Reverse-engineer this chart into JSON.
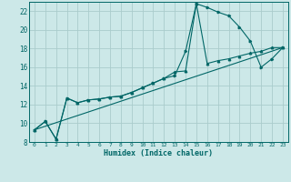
{
  "xlabel": "Humidex (Indice chaleur)",
  "bg_color": "#cce8e8",
  "grid_color": "#aacccc",
  "line_color": "#006666",
  "xlim": [
    -0.5,
    23.5
  ],
  "ylim": [
    8,
    23
  ],
  "xticks": [
    0,
    1,
    2,
    3,
    4,
    5,
    6,
    7,
    8,
    9,
    10,
    11,
    12,
    13,
    14,
    15,
    16,
    17,
    18,
    19,
    20,
    21,
    22,
    23
  ],
  "yticks": [
    8,
    10,
    12,
    14,
    16,
    18,
    20,
    22
  ],
  "line1_x": [
    0,
    1,
    2,
    3,
    4,
    5,
    6,
    7,
    8,
    9,
    10,
    11,
    12,
    13,
    14,
    15,
    16,
    17,
    18,
    19,
    20,
    21,
    22,
    23
  ],
  "line1_y": [
    9.3,
    10.2,
    8.3,
    12.7,
    12.2,
    12.5,
    12.6,
    12.8,
    12.9,
    13.3,
    13.8,
    14.3,
    14.8,
    15.1,
    17.7,
    22.8,
    22.4,
    21.9,
    21.5,
    20.3,
    18.8,
    16.0,
    16.9,
    18.1
  ],
  "line2_x": [
    0,
    1,
    2,
    3,
    4,
    5,
    6,
    7,
    8,
    9,
    10,
    11,
    12,
    13,
    14,
    15,
    16,
    17,
    18,
    19,
    20,
    21,
    22,
    23
  ],
  "line2_y": [
    9.3,
    10.2,
    8.3,
    12.7,
    12.2,
    12.5,
    12.6,
    12.8,
    12.9,
    13.3,
    13.8,
    14.3,
    14.8,
    15.5,
    15.6,
    22.8,
    16.4,
    16.7,
    16.9,
    17.2,
    17.5,
    17.7,
    18.1,
    18.1
  ],
  "line3_x": [
    0,
    23
  ],
  "line3_y": [
    9.3,
    18.1
  ]
}
